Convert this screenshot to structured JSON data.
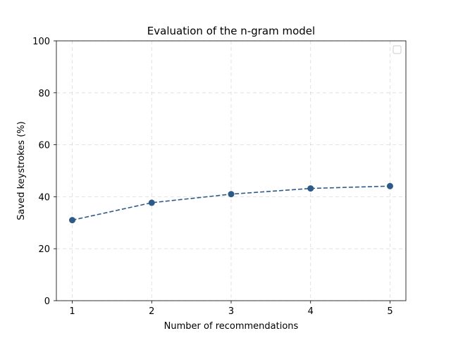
{
  "chart_data": {
    "type": "line",
    "title": "Evaluation of the n-gram model",
    "xlabel": "Number of recommendations",
    "ylabel": "Saved keystrokes (%)",
    "x": [
      1,
      2,
      3,
      4,
      5
    ],
    "series": [
      {
        "values": [
          31.0,
          37.7,
          41.0,
          43.2,
          44.1
        ],
        "color": "#2e5a87",
        "line_style": "dashed",
        "marker": "circle"
      }
    ],
    "xlim": [
      0.8,
      5.2
    ],
    "ylim": [
      0,
      100
    ],
    "xticks": [
      "1",
      "2",
      "3",
      "4",
      "5"
    ],
    "yticks": [
      "0",
      "20",
      "40",
      "60",
      "80",
      "100"
    ],
    "grid": true,
    "legend": {
      "placement": "top-right",
      "entries": []
    }
  }
}
